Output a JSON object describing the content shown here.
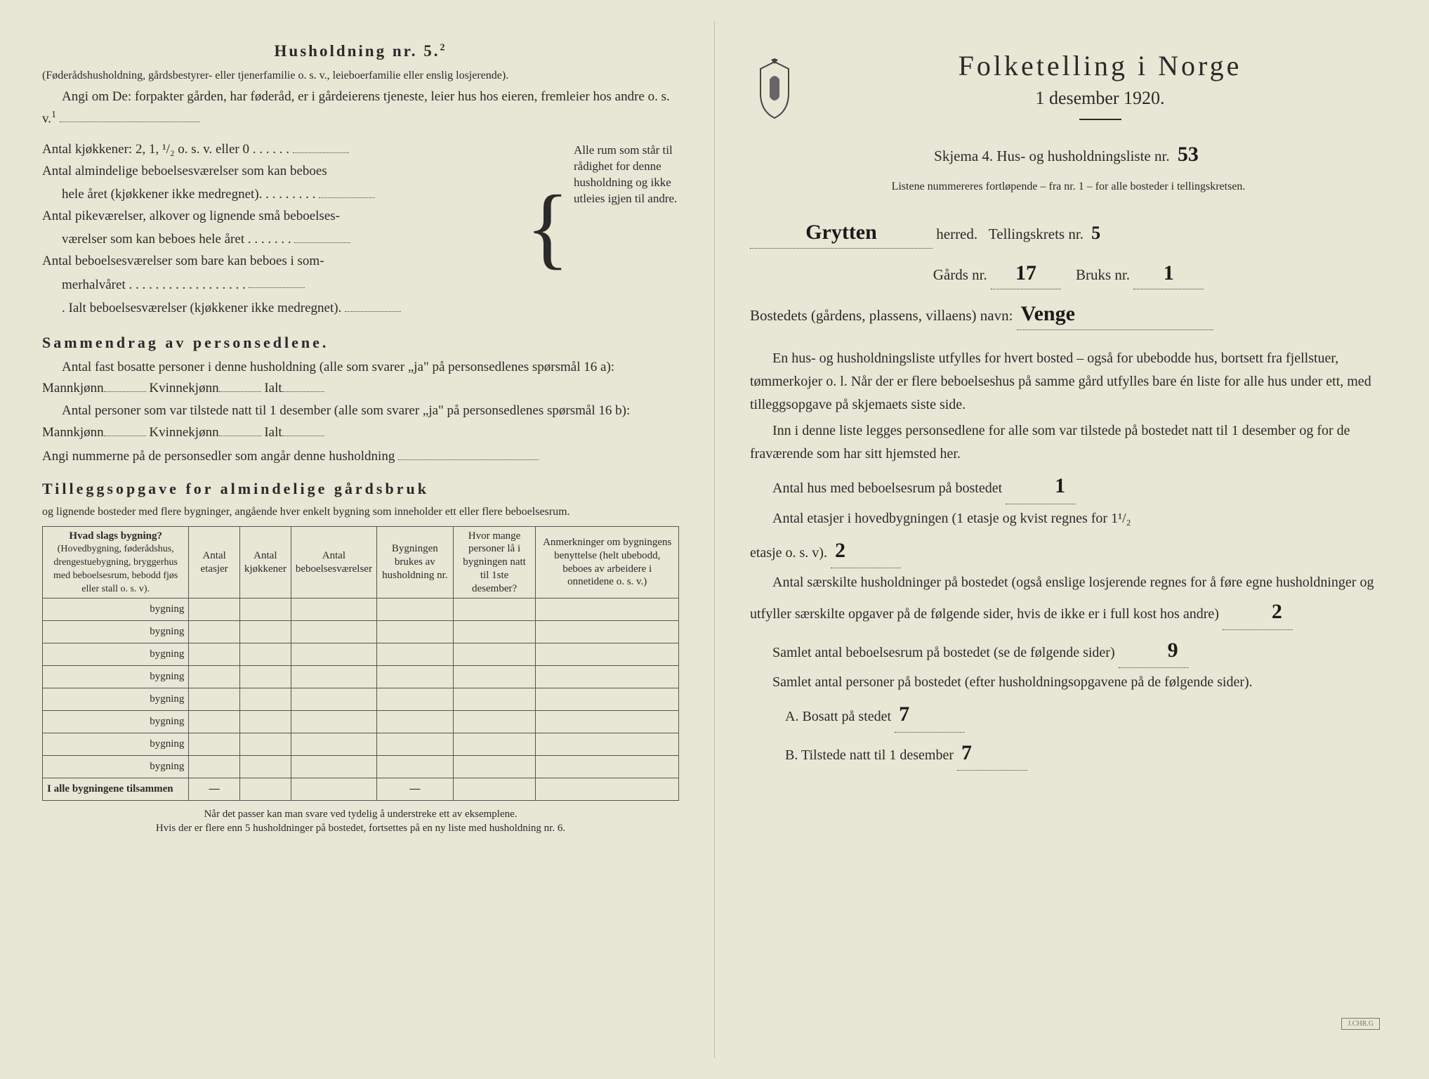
{
  "left": {
    "heading": "Husholdning nr. 5.",
    "heading_sup": "2",
    "intro1": "(Føderådshusholdning, gårdsbestyrer- eller tjenerfamilie o. s. v., leieboerfamilie eller enslig losjerende).",
    "intro2": "Angi om De: forpakter gården, har føderåd, er i gårdeierens tjeneste, leier hus hos eieren, fremleier hos andre o. s. v.",
    "intro2_sup": "1",
    "k1": "Antal kjøkkener: 2, 1, ¹/₂ o. s. v. eller 0 . . . . . .",
    "k2a": "Antal almindelige beboelsesværelser som kan beboes",
    "k2b": "hele året (kjøkkener ikke medregnet). . . . . . . . .",
    "k3a": "Antal pikeværelser, alkover og lignende små beboelses-",
    "k3b": "værelser som kan beboes hele året . . . . . . .",
    "k4a": "Antal beboelsesværelser som bare kan beboes i som-",
    "k4b": "merhalvåret . . . . . . . . . . . . . . . . . .",
    "k5": ". Ialt beboelsesværelser (kjøkkener ikke medregnet).",
    "brace_text": "Alle rum som står til rådighet for denne husholdning og ikke utleies igjen til andre.",
    "samm_heading": "Sammendrag av personsedlene.",
    "samm1": "Antal fast bosatte personer i denne husholdning (alle som svarer „ja\" på personsedlenes spørsmål 16 a): Mannkjønn",
    "samm1b": "Kvinnekjønn",
    "samm1c": "Ialt",
    "samm2": "Antal personer som var tilstede natt til 1 desember (alle som svarer „ja\" på personsedlenes spørsmål 16 b): Mannkjønn",
    "samm3": "Angi nummerne på de personsedler som angår denne husholdning",
    "till_heading": "Tilleggsopgave for almindelige gårdsbruk",
    "till_sub": "og lignende bosteder med flere bygninger, angående hver enkelt bygning som inneholder ett eller flere beboelsesrum.",
    "table": {
      "h1": "Hvad slags bygning?",
      "h1_sub": "(Hovedbygning, føderådshus, drengestuebygning, bryggerhus med beboelsesrum, bebodd fjøs eller stall o. s. v).",
      "h2": "Antal etasjer",
      "h3": "Antal kjøkkener",
      "h4": "Antal beboelsesværelser",
      "h5": "Bygningen brukes av husholdning nr.",
      "h6": "Hvor mange personer lå i bygningen natt til 1ste desember?",
      "h7": "Anmerkninger om bygningens benyttelse (helt ubebodd, beboes av arbeidere i onnetidene o. s. v.)",
      "row_label": "bygning",
      "sum_label": "I alle bygningene tilsammen"
    },
    "foot1": "Når det passer kan man svare ved tydelig å understreke ett av eksemplene.",
    "foot2": "Hvis der er flere enn 5 husholdninger på bostedet, fortsettes på en ny liste med husholdning nr. 6."
  },
  "right": {
    "main_title": "Folketelling i Norge",
    "subtitle": "1 desember 1920.",
    "skjema": "Skjema 4. Hus- og husholdningsliste nr.",
    "skjema_val": "53",
    "listene": "Listene nummereres fortløpende – fra nr. 1 – for alle bosteder i tellingskretsen.",
    "herred_val": "Grytten",
    "herred_label": "herred.",
    "tellingskrets": "Tellingskrets nr.",
    "tellingskrets_val": "5",
    "gards": "Gårds nr.",
    "gards_val": "17",
    "bruks": "Bruks nr.",
    "bruks_val": "1",
    "bosted": "Bostedets (gårdens, plassens, villaens) navn:",
    "bosted_val": "Venge",
    "p1": "En hus- og husholdningsliste utfylles for hvert bosted – også for ubebodde hus, bortsett fra fjellstuer, tømmerkojer o. l. Når der er flere beboelseshus på samme gård utfylles bare én liste for alle hus under ett, med tilleggsopgave på skjemaets siste side.",
    "p2": "Inn i denne liste legges personsedlene for alle som var tilstede på bostedet natt til 1 desember og for de fraværende som har sitt hjemsted her.",
    "q1": "Antal hus med beboelsesrum på bostedet",
    "q1_val": "1",
    "q2a": "Antal etasjer i hovedbygningen (1 etasje og kvist regnes for 1¹/₂",
    "q2b": "etasje o. s. v).",
    "q2_val": "2",
    "q3": "Antal særskilte husholdninger på bostedet (også enslige losjerende regnes for å føre egne husholdninger og utfyller særskilte opgaver på de følgende sider, hvis de ikke er i full kost hos andre)",
    "q3_val": "2",
    "q4": "Samlet antal beboelsesrum på bostedet (se de følgende sider)",
    "q4_val": "9",
    "q5": "Samlet antal personer på bostedet (efter husholdningsopgavene på de følgende sider).",
    "qA": "A. Bosatt på stedet",
    "qA_val": "7",
    "qB": "B. Tilstede natt til 1 desember",
    "qB_val": "7"
  }
}
